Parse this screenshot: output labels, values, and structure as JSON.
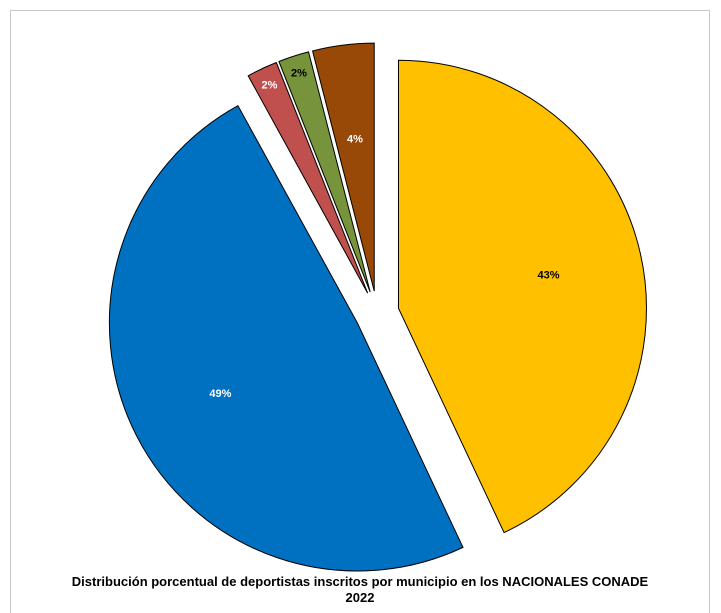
{
  "chart_data": {
    "type": "pie",
    "title": "Distribución porcentual de deportistas inscritos por municipio en los NACIONALES CONADE 2022",
    "start_angle_deg": 0,
    "direction": "clockwise",
    "slices": [
      {
        "value": 43,
        "label": "43%",
        "color": "#FFC000",
        "label_color": "#000000",
        "explode": true
      },
      {
        "value": 49,
        "label": "49%",
        "color": "#0070C0",
        "label_color": "#FFFFFF",
        "explode": true
      },
      {
        "value": 2,
        "label": "2%",
        "color": "#C0504D",
        "label_color": "#FFFFFF",
        "explode": true
      },
      {
        "value": 2,
        "label": "2%",
        "color": "#77933C",
        "label_color": "#000000",
        "explode": true
      },
      {
        "value": 4,
        "label": "4%",
        "color": "#984807",
        "label_color": "#FFFFFF",
        "explode": true
      }
    ],
    "legend": "none"
  }
}
